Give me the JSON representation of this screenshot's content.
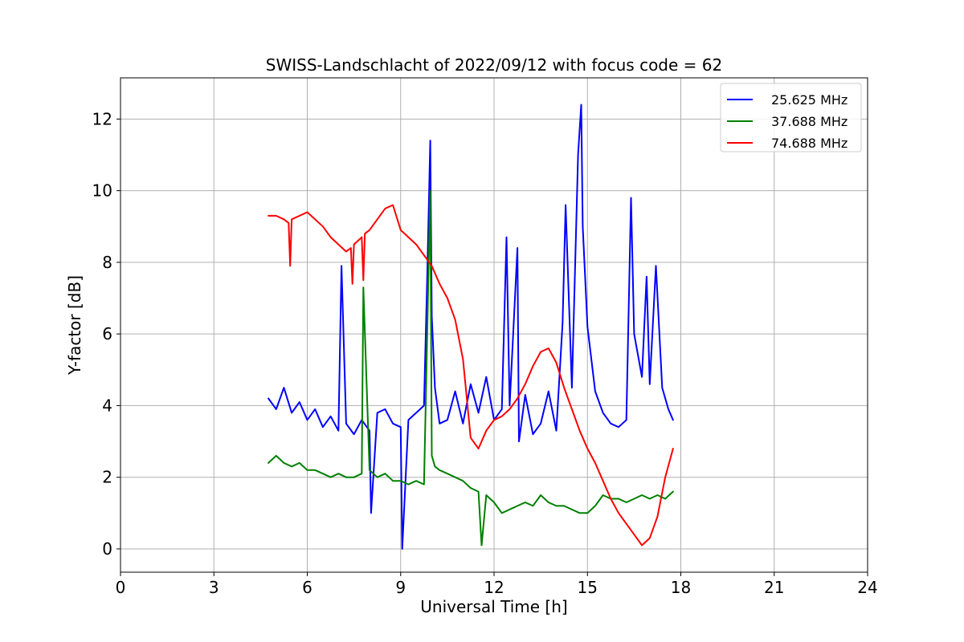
{
  "chart_data": {
    "type": "line",
    "title": "SWISS-Landschlacht of 2022/09/12 with focus code = 62",
    "xlabel": "Universal Time [h]",
    "ylabel": "Y-factor [dB]",
    "xlim": [
      0,
      24
    ],
    "ylim": [
      -0.65,
      13.15
    ],
    "xticks": [
      0,
      3,
      6,
      9,
      12,
      15,
      18,
      21,
      24
    ],
    "yticks": [
      0,
      2,
      4,
      6,
      8,
      10,
      12
    ],
    "grid": true,
    "legend_position": "top-right",
    "series": [
      {
        "name": "25.625 MHz",
        "color": "#0000ff",
        "x": [
          4.75,
          5.0,
          5.25,
          5.5,
          5.75,
          6.0,
          6.25,
          6.5,
          6.75,
          7.0,
          7.1,
          7.25,
          7.5,
          7.75,
          8.0,
          8.05,
          8.25,
          8.5,
          8.75,
          9.0,
          9.05,
          9.25,
          9.5,
          9.75,
          9.85,
          9.95,
          10.0,
          10.1,
          10.25,
          10.5,
          10.75,
          11.0,
          11.25,
          11.5,
          11.75,
          12.0,
          12.25,
          12.4,
          12.5,
          12.75,
          12.8,
          13.0,
          13.25,
          13.5,
          13.75,
          14.0,
          14.2,
          14.3,
          14.5,
          14.7,
          14.8,
          14.85,
          15.0,
          15.25,
          15.5,
          15.75,
          16.0,
          16.25,
          16.4,
          16.5,
          16.75,
          16.9,
          17.0,
          17.2,
          17.4,
          17.6,
          17.75
        ],
        "y": [
          4.2,
          3.9,
          4.5,
          3.8,
          4.1,
          3.6,
          3.9,
          3.4,
          3.7,
          3.3,
          7.9,
          3.5,
          3.2,
          3.6,
          3.3,
          1.0,
          3.8,
          3.9,
          3.5,
          3.4,
          0.0,
          3.6,
          3.8,
          4.0,
          7.5,
          11.4,
          6.5,
          4.5,
          3.5,
          3.6,
          4.4,
          3.5,
          4.6,
          3.8,
          4.8,
          3.6,
          3.9,
          8.7,
          4.0,
          8.4,
          3.0,
          4.3,
          3.2,
          3.5,
          4.4,
          3.3,
          6.3,
          9.6,
          4.5,
          11.0,
          12.4,
          9.0,
          6.2,
          4.4,
          3.8,
          3.5,
          3.4,
          3.6,
          9.8,
          6.0,
          4.8,
          7.6,
          4.6,
          7.9,
          4.5,
          3.9,
          3.6
        ]
      },
      {
        "name": "37.688 MHz",
        "color": "#008000",
        "x": [
          4.75,
          5.0,
          5.25,
          5.5,
          5.75,
          6.0,
          6.25,
          6.5,
          6.75,
          7.0,
          7.25,
          7.5,
          7.75,
          7.8,
          8.0,
          8.25,
          8.5,
          8.75,
          9.0,
          9.25,
          9.5,
          9.75,
          9.95,
          10.0,
          10.1,
          10.25,
          10.5,
          10.75,
          11.0,
          11.25,
          11.5,
          11.6,
          11.75,
          12.0,
          12.25,
          12.5,
          12.75,
          13.0,
          13.25,
          13.5,
          13.75,
          14.0,
          14.25,
          14.5,
          14.75,
          15.0,
          15.25,
          15.5,
          15.75,
          16.0,
          16.25,
          16.5,
          16.75,
          17.0,
          17.25,
          17.5,
          17.75
        ],
        "y": [
          2.4,
          2.6,
          2.4,
          2.3,
          2.4,
          2.2,
          2.2,
          2.1,
          2.0,
          2.1,
          2.0,
          2.0,
          2.1,
          7.3,
          2.2,
          2.0,
          2.1,
          1.9,
          1.9,
          1.8,
          1.9,
          1.8,
          10.0,
          2.6,
          2.3,
          2.2,
          2.1,
          2.0,
          1.9,
          1.7,
          1.6,
          0.1,
          1.5,
          1.3,
          1.0,
          1.1,
          1.2,
          1.3,
          1.2,
          1.5,
          1.3,
          1.2,
          1.2,
          1.1,
          1.0,
          1.0,
          1.2,
          1.5,
          1.4,
          1.4,
          1.3,
          1.4,
          1.5,
          1.4,
          1.5,
          1.4,
          1.6
        ]
      },
      {
        "name": "74.688 MHz",
        "color": "#ff0000",
        "x": [
          4.75,
          5.0,
          5.25,
          5.4,
          5.45,
          5.5,
          5.75,
          6.0,
          6.25,
          6.5,
          6.75,
          7.0,
          7.25,
          7.4,
          7.45,
          7.5,
          7.75,
          7.8,
          7.85,
          8.0,
          8.25,
          8.5,
          8.75,
          9.0,
          9.25,
          9.5,
          9.75,
          10.0,
          10.25,
          10.5,
          10.75,
          11.0,
          11.25,
          11.5,
          11.75,
          12.0,
          12.25,
          12.5,
          12.75,
          13.0,
          13.25,
          13.5,
          13.75,
          14.0,
          14.25,
          14.5,
          14.75,
          15.0,
          15.25,
          15.5,
          15.75,
          16.0,
          16.25,
          16.5,
          16.75,
          17.0,
          17.25,
          17.5,
          17.75
        ],
        "y": [
          9.3,
          9.3,
          9.2,
          9.1,
          7.9,
          9.2,
          9.3,
          9.4,
          9.2,
          9.0,
          8.7,
          8.5,
          8.3,
          8.4,
          7.4,
          8.5,
          8.7,
          7.5,
          8.8,
          8.9,
          9.2,
          9.5,
          9.6,
          8.9,
          8.7,
          8.5,
          8.2,
          7.9,
          7.4,
          7.0,
          6.4,
          5.3,
          3.1,
          2.8,
          3.3,
          3.6,
          3.7,
          3.9,
          4.2,
          4.6,
          5.1,
          5.5,
          5.6,
          5.2,
          4.5,
          3.9,
          3.3,
          2.8,
          2.4,
          1.9,
          1.4,
          1.0,
          0.7,
          0.4,
          0.1,
          0.3,
          0.9,
          2.0,
          2.8
        ]
      }
    ]
  }
}
